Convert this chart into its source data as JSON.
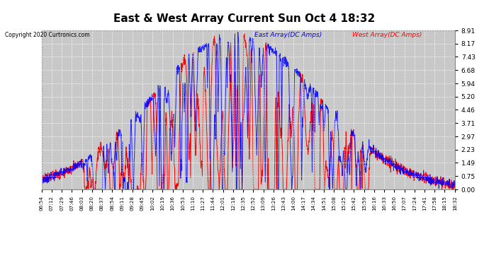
{
  "title": "East & West Array Current Sun Oct 4 18:32",
  "copyright": "Copyright 2020 Curtronics.com",
  "legend_east": "East Array(DC Amps)",
  "legend_west": "West Array(DC Amps)",
  "east_color": "#0000ff",
  "west_color": "#ff0000",
  "fig_bg": "#ffffff",
  "plot_bg": "#c8c8c8",
  "grid_color": "#ffffff",
  "title_color": "#000000",
  "y_ticks": [
    0.0,
    0.75,
    1.49,
    2.23,
    2.97,
    3.71,
    4.46,
    5.2,
    5.94,
    6.68,
    7.43,
    8.17,
    8.91
  ],
  "ylim": [
    0.0,
    8.91
  ],
  "x_labels": [
    "06:54",
    "07:12",
    "07:29",
    "07:46",
    "08:03",
    "08:20",
    "08:37",
    "08:54",
    "09:11",
    "09:28",
    "09:45",
    "10:02",
    "10:19",
    "10:36",
    "10:53",
    "11:10",
    "11:27",
    "11:44",
    "12:01",
    "12:18",
    "12:35",
    "12:52",
    "13:09",
    "13:26",
    "13:43",
    "14:00",
    "14:17",
    "14:34",
    "14:51",
    "15:08",
    "15:25",
    "15:42",
    "15:59",
    "16:16",
    "16:33",
    "16:50",
    "17:07",
    "17:24",
    "17:41",
    "17:58",
    "18:15",
    "18:32"
  ]
}
